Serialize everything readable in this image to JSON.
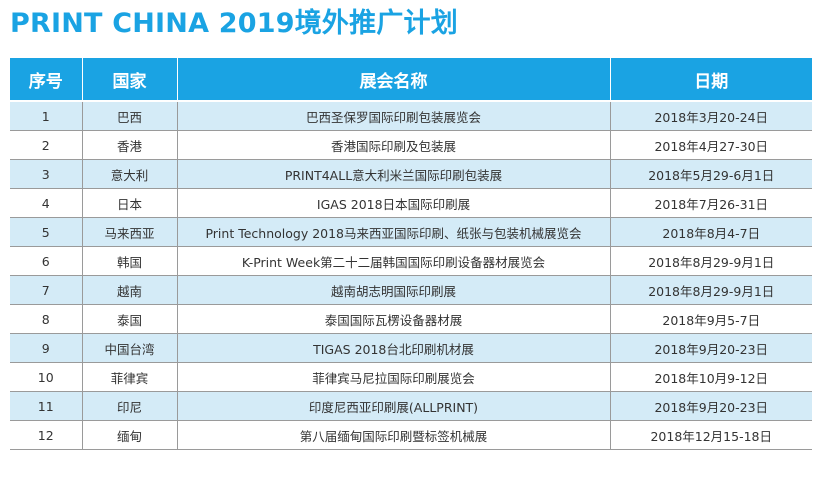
{
  "title": "PRINT CHINA 2019境外推广计划",
  "table": {
    "headers": [
      "序号",
      "国家",
      "展会名称",
      "日期"
    ],
    "rows": [
      {
        "no": "1",
        "country": "巴西",
        "expo": "巴西圣保罗国际印刷包装展览会",
        "date": "2018年3月20-24日"
      },
      {
        "no": "2",
        "country": "香港",
        "expo": "香港国际印刷及包装展",
        "date": "2018年4月27-30日"
      },
      {
        "no": "3",
        "country": "意大利",
        "expo": "PRINT4ALL意大利米兰国际印刷包装展",
        "date": "2018年5月29-6月1日"
      },
      {
        "no": "4",
        "country": "日本",
        "expo": "IGAS 2018日本国际印刷展",
        "date": "2018年7月26-31日"
      },
      {
        "no": "5",
        "country": "马来西亚",
        "expo": "Print Technology 2018马来西亚国际印刷、纸张与包装机械展览会",
        "date": "2018年8月4-7日"
      },
      {
        "no": "6",
        "country": "韩国",
        "expo": "K-Print Week第二十二届韩国国际印刷设备器材展览会",
        "date": "2018年8月29-9月1日"
      },
      {
        "no": "7",
        "country": "越南",
        "expo": "越南胡志明国际印刷展",
        "date": "2018年8月29-9月1日"
      },
      {
        "no": "8",
        "country": "泰国",
        "expo": "泰国国际瓦楞设备器材展",
        "date": "2018年9月5-7日"
      },
      {
        "no": "9",
        "country": "中国台湾",
        "expo": "TIGAS 2018台北印刷机材展",
        "date": "2018年9月20-23日"
      },
      {
        "no": "10",
        "country": "菲律宾",
        "expo": "菲律宾马尼拉国际印刷展览会",
        "date": "2018年10月9-12日"
      },
      {
        "no": "11",
        "country": "印尼",
        "expo": "印度尼西亚印刷展(ALLPRINT)",
        "date": "2018年9月20-23日"
      },
      {
        "no": "12",
        "country": "缅甸",
        "expo": "第八届缅甸国际印刷暨标签机械展",
        "date": "2018年12月15-18日"
      }
    ]
  },
  "colors": {
    "accent": "#1aa3e3",
    "row_stripe": "#d4ebf7",
    "grid": "#9a9a9a"
  }
}
